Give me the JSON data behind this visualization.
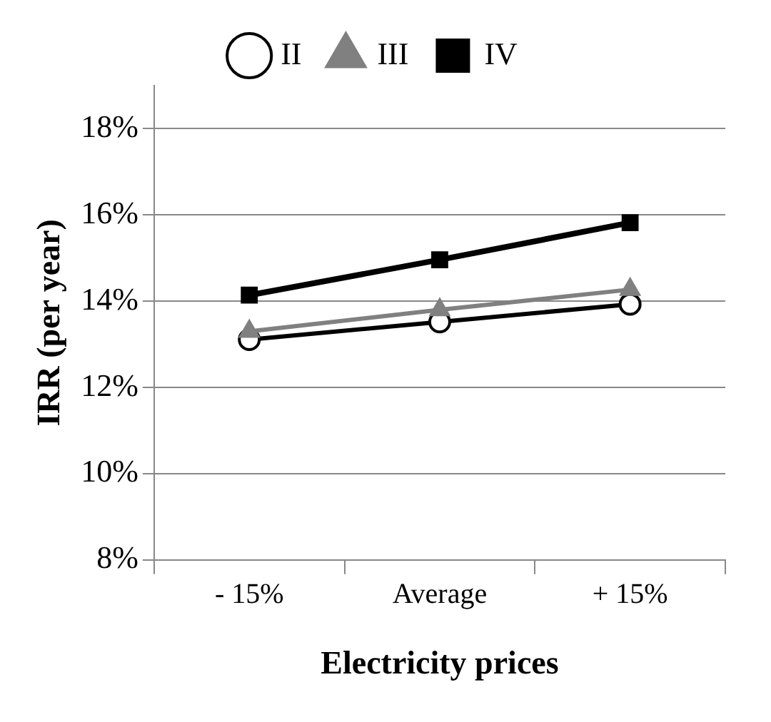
{
  "chart_data": {
    "type": "line",
    "xlabel": "Electricity prices",
    "ylabel": "IRR (per year)",
    "categories": [
      "- 15%",
      "Average",
      "+ 15%"
    ],
    "series": [
      {
        "name": "II",
        "color": "#000000",
        "marker": "circle",
        "values": [
          13.11,
          13.52,
          13.93
        ]
      },
      {
        "name": "III",
        "color": "#808080",
        "marker": "triangle",
        "values": [
          13.3,
          13.8,
          14.27
        ]
      },
      {
        "name": "IV",
        "color": "#000000",
        "marker": "square",
        "values": [
          14.14,
          14.96,
          15.82
        ]
      }
    ],
    "ylim": [
      8,
      19
    ],
    "yticks": [
      {
        "value": 8,
        "label": "8%"
      },
      {
        "value": 10,
        "label": "10%"
      },
      {
        "value": 12,
        "label": "12%"
      },
      {
        "value": 14,
        "label": "14%"
      },
      {
        "value": 16,
        "label": "16%"
      },
      {
        "value": 18,
        "label": "18%"
      }
    ],
    "grid": "y",
    "legend": "top"
  }
}
